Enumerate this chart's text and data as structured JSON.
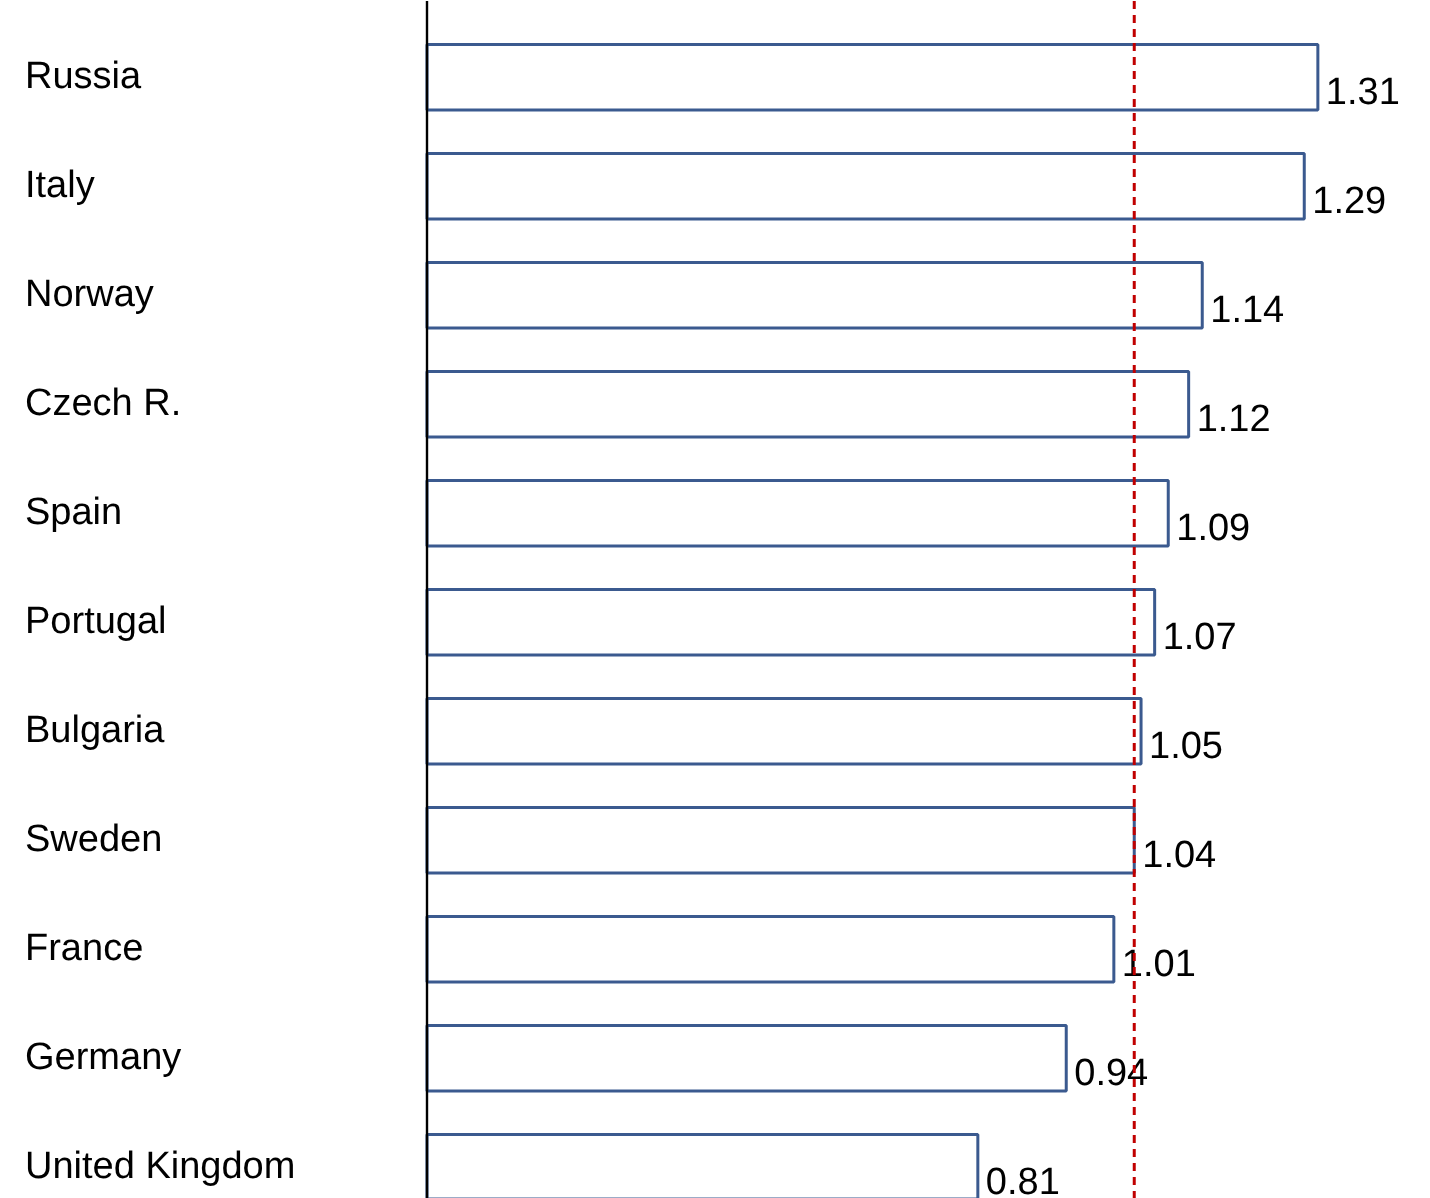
{
  "chart_data": {
    "type": "bar",
    "orientation": "horizontal",
    "categories": [
      "Russia",
      "Italy",
      "Norway",
      "Czech R.",
      "Spain",
      "Portugal",
      "Bulgaria",
      "Sweden",
      "France",
      "Germany",
      "United Kingdom"
    ],
    "values": [
      1.31,
      1.29,
      1.14,
      1.12,
      1.09,
      1.07,
      1.05,
      1.04,
      1.01,
      0.94,
      0.81
    ],
    "color": "#3b5a8f",
    "data_labels": true,
    "tick_labels": "y",
    "ref_lines": [
      {
        "axis": "x",
        "value": 1.04,
        "color": "#c00000",
        "line_style": "dashed"
      }
    ]
  }
}
